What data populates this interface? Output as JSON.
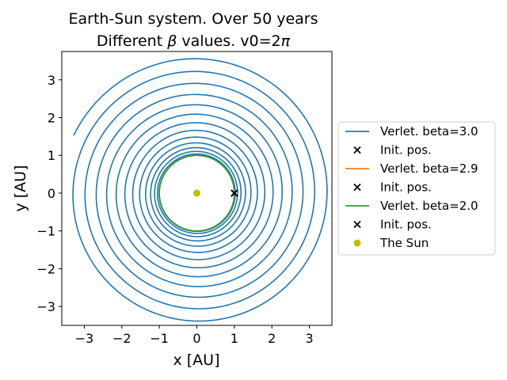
{
  "chart_data": {
    "type": "line",
    "title_line1": "Earth-Sun system. Over 50 years",
    "title_line2_prefix": "Different ",
    "title_line2_symbol": "β",
    "title_line2_suffix": " values. v0=2",
    "title_line2_pi": "π",
    "xlabel": "x [AU]",
    "ylabel": "y [AU]",
    "xlim": [
      -3.6,
      3.6
    ],
    "ylim": [
      -3.5,
      3.75
    ],
    "xticks": [
      -3,
      -2,
      -1,
      0,
      1,
      2,
      3
    ],
    "yticks": [
      -3,
      -2,
      -1,
      0,
      1,
      2,
      3
    ],
    "xtick_labels": [
      "−3",
      "−2",
      "−1",
      "0",
      "1",
      "2",
      "3"
    ],
    "ytick_labels": [
      "−3",
      "−2",
      "−1",
      "0",
      "1",
      "2",
      "3"
    ],
    "grid": false,
    "legend_position": "right, outside plot",
    "series": [
      {
        "name": "Verlet. beta=3.0",
        "color": "#1f77b4",
        "spiral": {
          "r_start": 1.0,
          "r_end": 3.62,
          "turns": 13.5,
          "end_point": [
            -3.28,
            1.53
          ]
        }
      },
      {
        "name": "Init. pos.",
        "marker": "x",
        "color": "#000000",
        "points": [
          [
            1.0,
            0.0
          ]
        ]
      },
      {
        "name": "Verlet. beta=2.9",
        "color": "#ff7f0e",
        "circle_radius": 1.0
      },
      {
        "name": "Init. pos.",
        "marker": "x",
        "color": "#000000",
        "points": [
          [
            1.0,
            0.0
          ]
        ]
      },
      {
        "name": "Verlet. beta=2.0",
        "color": "#2ca02c",
        "circle_radius": 1.0
      },
      {
        "name": "Init. pos.",
        "marker": "x",
        "color": "#000000",
        "points": [
          [
            1.0,
            0.0
          ]
        ]
      },
      {
        "name": "The Sun",
        "marker": "o",
        "color": "#bfbf00",
        "points": [
          [
            0.0,
            0.0
          ]
        ]
      }
    ]
  }
}
